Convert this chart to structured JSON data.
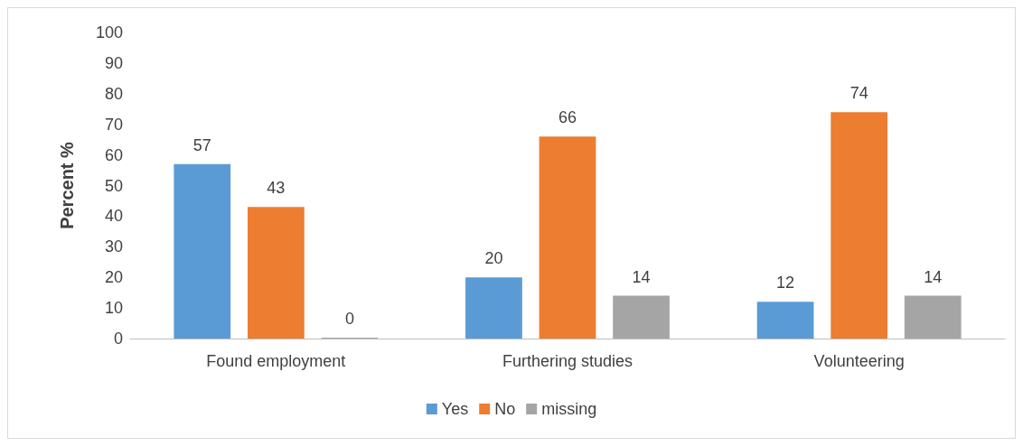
{
  "chart_data": {
    "type": "bar",
    "ylabel": "Percent %",
    "categories": [
      "Found employment",
      "Furthering studies",
      "Volunteering"
    ],
    "series": [
      {
        "name": "Yes",
        "color": "#5b9bd5",
        "values": [
          57,
          20,
          12
        ]
      },
      {
        "name": "No",
        "color": "#ed7d31",
        "values": [
          43,
          66,
          74
        ]
      },
      {
        "name": "missing",
        "color": "#a5a5a5",
        "values": [
          0,
          14,
          14
        ]
      }
    ],
    "ylim": [
      0,
      100
    ],
    "yticks": [
      0,
      10,
      20,
      30,
      40,
      50,
      60,
      70,
      80,
      90,
      100
    ],
    "grid": false,
    "legend": "bottom",
    "data_labels": true
  }
}
